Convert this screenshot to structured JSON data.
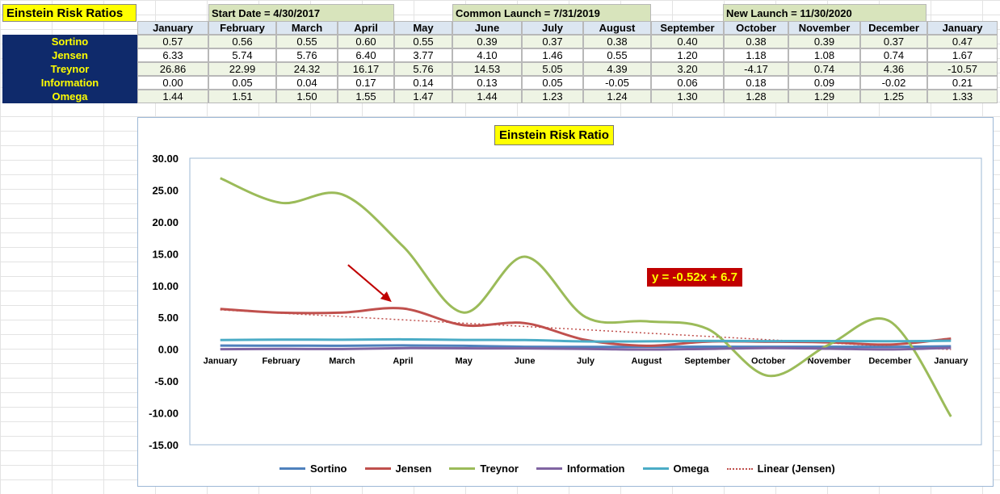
{
  "sheet": {
    "title": "Einstein Risk Ratios",
    "start_date": "Start Date = 4/30/2017",
    "common_launch": "Common Launch = 7/31/2019",
    "new_launch": "New Launch = 11/30/2020",
    "months": [
      "January",
      "February",
      "March",
      "April",
      "May",
      "June",
      "July",
      "August",
      "September",
      "October",
      "November",
      "December",
      "January"
    ],
    "rows": [
      {
        "label": "Sortino",
        "values": [
          "0.57",
          "0.56",
          "0.55",
          "0.60",
          "0.55",
          "0.39",
          "0.37",
          "0.38",
          "0.40",
          "0.38",
          "0.39",
          "0.37",
          "0.47"
        ]
      },
      {
        "label": "Jensen",
        "values": [
          "6.33",
          "5.74",
          "5.76",
          "6.40",
          "3.77",
          "4.10",
          "1.46",
          "0.55",
          "1.20",
          "1.18",
          "1.08",
          "0.74",
          "1.67"
        ]
      },
      {
        "label": "Treynor",
        "values": [
          "26.86",
          "22.99",
          "24.32",
          "16.17",
          "5.76",
          "14.53",
          "5.05",
          "4.39",
          "3.20",
          "-4.17",
          "0.74",
          "4.36",
          "-10.57"
        ]
      },
      {
        "label": "Information",
        "values": [
          "0.00",
          "0.05",
          "0.04",
          "0.17",
          "0.14",
          "0.13",
          "0.05",
          "-0.05",
          "0.06",
          "0.18",
          "0.09",
          "-0.02",
          "0.21"
        ]
      },
      {
        "label": "Omega",
        "values": [
          "1.44",
          "1.51",
          "1.50",
          "1.55",
          "1.47",
          "1.44",
          "1.23",
          "1.24",
          "1.30",
          "1.28",
          "1.29",
          "1.25",
          "1.33"
        ]
      }
    ]
  },
  "chart_data": {
    "type": "line",
    "title": "Einstein Risk Ratio",
    "categories": [
      "January",
      "February",
      "March",
      "April",
      "May",
      "June",
      "July",
      "August",
      "September",
      "October",
      "November",
      "December",
      "January"
    ],
    "ylim": [
      -15,
      30
    ],
    "yticks": [
      "30.00",
      "25.00",
      "20.00",
      "15.00",
      "10.00",
      "5.00",
      "0.00",
      "-5.00",
      "-10.00",
      "-15.00"
    ],
    "series": [
      {
        "name": "Sortino",
        "color": "#4f81bd",
        "values": [
          0.57,
          0.56,
          0.55,
          0.6,
          0.55,
          0.39,
          0.37,
          0.38,
          0.4,
          0.38,
          0.39,
          0.37,
          0.47
        ]
      },
      {
        "name": "Jensen",
        "color": "#c0504d",
        "values": [
          6.33,
          5.74,
          5.76,
          6.4,
          3.77,
          4.1,
          1.46,
          0.55,
          1.2,
          1.18,
          1.08,
          0.74,
          1.67
        ]
      },
      {
        "name": "Treynor",
        "color": "#9bbb59",
        "values": [
          26.86,
          22.99,
          24.32,
          16.17,
          5.76,
          14.53,
          5.05,
          4.39,
          3.2,
          -4.17,
          0.74,
          4.36,
          -10.57
        ]
      },
      {
        "name": "Information",
        "color": "#8064a2",
        "values": [
          0.0,
          0.05,
          0.04,
          0.17,
          0.14,
          0.13,
          0.05,
          -0.05,
          0.06,
          0.18,
          0.09,
          -0.02,
          0.21
        ]
      },
      {
        "name": "Omega",
        "color": "#4bacc6",
        "values": [
          1.44,
          1.51,
          1.5,
          1.55,
          1.47,
          1.44,
          1.23,
          1.24,
          1.3,
          1.28,
          1.29,
          1.25,
          1.33
        ]
      }
    ],
    "trendline": {
      "name": "Linear (Jensen)",
      "color": "#c0504d",
      "slope": -0.52,
      "intercept": 6.7,
      "label": "y = -0.52x + 6.7"
    },
    "annotation": {
      "type": "arrow",
      "color": "#c00000",
      "target_category": "April"
    },
    "legend": "bottom",
    "grid": false
  }
}
